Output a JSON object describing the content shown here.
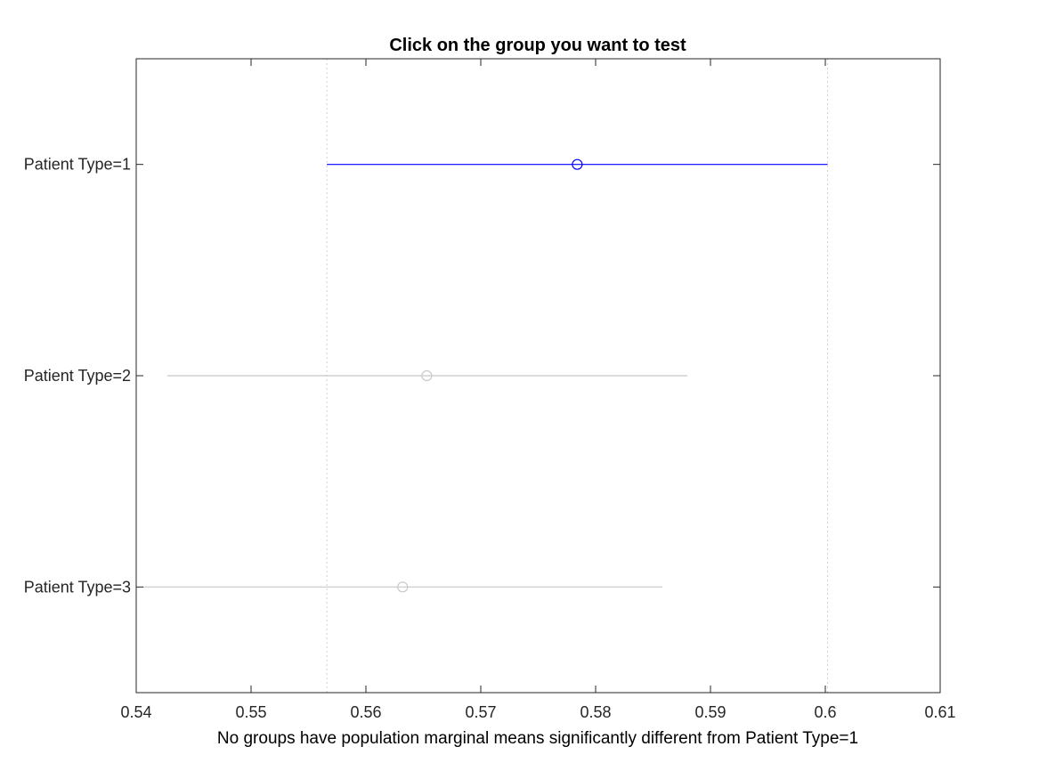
{
  "chart_data": {
    "type": "interval",
    "title": "Click on the group you want to test",
    "xlabel": "No groups have population marginal means significantly different from Patient Type=1",
    "ylabel": "",
    "xlim": [
      0.54,
      0.61
    ],
    "xticks": [
      0.54,
      0.55,
      0.56,
      0.57,
      0.58,
      0.59,
      0.6,
      0.61
    ],
    "xtick_labels": [
      "0.54",
      "0.55",
      "0.56",
      "0.57",
      "0.58",
      "0.59",
      "0.6",
      "0.61"
    ],
    "grid": false,
    "reference_lines": [
      0.5566,
      0.6002
    ],
    "groups": [
      {
        "label": "Patient Type=1",
        "mean": 0.5784,
        "lower": 0.5566,
        "upper": 0.6002,
        "selected": true
      },
      {
        "label": "Patient Type=2",
        "mean": 0.5653,
        "lower": 0.5427,
        "upper": 0.588,
        "selected": false
      },
      {
        "label": "Patient Type=3",
        "mean": 0.5632,
        "lower": 0.5405,
        "upper": 0.5858,
        "selected": false
      }
    ],
    "colors": {
      "selected": "#0000ff",
      "unselected": "#c8c8c8",
      "axes": "#262626",
      "reference_line": "#cfcfcf"
    }
  }
}
